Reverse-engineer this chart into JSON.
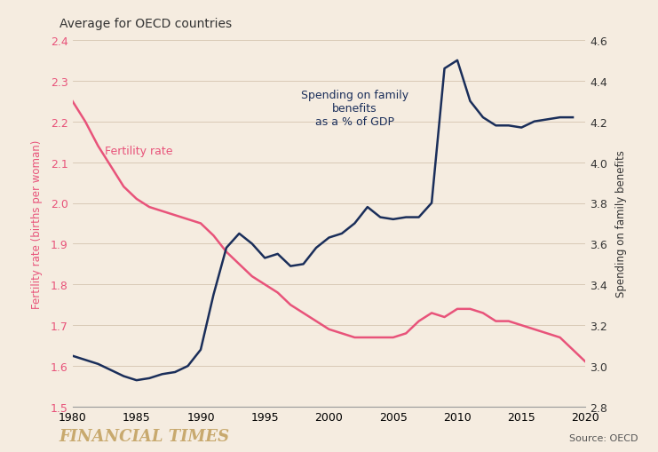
{
  "title": "Average for OECD countries",
  "background_color": "#f5ece0",
  "footer_left": "FINANCIAL TIMES",
  "footer_right": "Source: OECD",
  "fertility_label": "Fertility rate",
  "fertility_ylabel": "Fertility rate (births per woman)",
  "fertility_color": "#e8537a",
  "fertility_ylim": [
    1.5,
    2.4
  ],
  "fertility_yticks": [
    1.5,
    1.6,
    1.7,
    1.8,
    1.9,
    2.0,
    2.1,
    2.2,
    2.3,
    2.4
  ],
  "spending_label": "Spending on family\nbenefits\nas a % of GDP",
  "spending_ylabel": "Spending on family benefits",
  "spending_color": "#1a2e5a",
  "spending_ylim": [
    2.8,
    4.6
  ],
  "spending_yticks": [
    2.8,
    3.0,
    3.2,
    3.4,
    3.6,
    3.8,
    4.0,
    4.2,
    4.4,
    4.6
  ],
  "xlim": [
    1980,
    2020
  ],
  "xticks": [
    1980,
    1985,
    1990,
    1995,
    2000,
    2005,
    2010,
    2015,
    2020
  ],
  "fertility_data": {
    "years": [
      1980,
      1981,
      1982,
      1983,
      1984,
      1985,
      1986,
      1987,
      1988,
      1989,
      1990,
      1991,
      1992,
      1993,
      1994,
      1995,
      1996,
      1997,
      1998,
      1999,
      2000,
      2001,
      2002,
      2003,
      2004,
      2005,
      2006,
      2007,
      2008,
      2009,
      2010,
      2011,
      2012,
      2013,
      2014,
      2015,
      2016,
      2017,
      2018,
      2019,
      2020
    ],
    "values": [
      2.25,
      2.2,
      2.14,
      2.09,
      2.04,
      2.01,
      1.99,
      1.98,
      1.97,
      1.96,
      1.95,
      1.92,
      1.88,
      1.85,
      1.82,
      1.8,
      1.78,
      1.75,
      1.73,
      1.71,
      1.69,
      1.68,
      1.67,
      1.67,
      1.67,
      1.67,
      1.68,
      1.71,
      1.73,
      1.72,
      1.74,
      1.74,
      1.73,
      1.71,
      1.71,
      1.7,
      1.69,
      1.68,
      1.67,
      1.64,
      1.61
    ]
  },
  "spending_data": {
    "years": [
      1980,
      1981,
      1982,
      1983,
      1984,
      1985,
      1986,
      1987,
      1988,
      1989,
      1990,
      1991,
      1992,
      1993,
      1994,
      1995,
      1996,
      1997,
      1998,
      1999,
      2000,
      2001,
      2002,
      2003,
      2004,
      2005,
      2006,
      2007,
      2008,
      2009,
      2010,
      2011,
      2012,
      2013,
      2014,
      2015,
      2016,
      2017,
      2018,
      2019
    ],
    "values": [
      3.05,
      3.03,
      3.01,
      2.98,
      2.95,
      2.93,
      2.94,
      2.96,
      2.97,
      3.0,
      3.08,
      3.35,
      3.58,
      3.65,
      3.6,
      3.53,
      3.55,
      3.49,
      3.5,
      3.58,
      3.63,
      3.65,
      3.7,
      3.78,
      3.73,
      3.72,
      3.73,
      3.73,
      3.8,
      4.46,
      4.5,
      4.3,
      4.22,
      4.18,
      4.18,
      4.17,
      4.2,
      4.21,
      4.22,
      4.22
    ]
  }
}
